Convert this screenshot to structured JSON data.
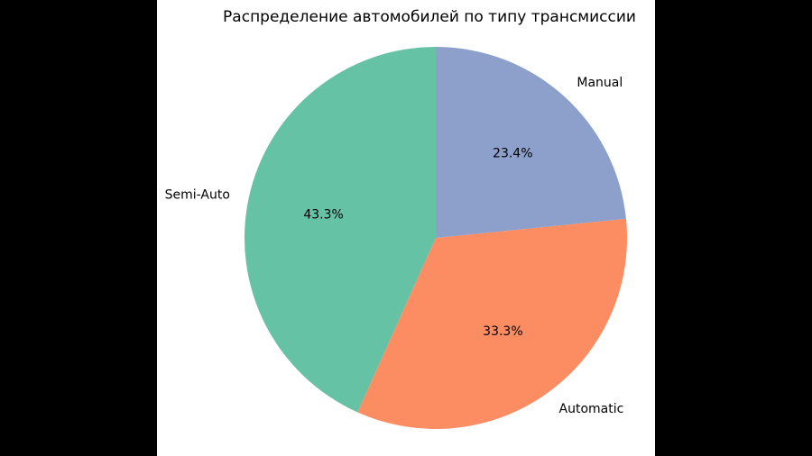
{
  "chart_data": {
    "type": "pie",
    "title": "Распределение автомобилей по типу трансмиссии",
    "categories": [
      "Semi-Auto",
      "Automatic",
      "Manual"
    ],
    "values": [
      43.3,
      33.3,
      23.4
    ],
    "labels_pct": [
      "43.3%",
      "33.3%",
      "23.4%"
    ],
    "colors": [
      "#66c2a5",
      "#fc8d62",
      "#8da0cb"
    ],
    "start_angle_deg": 90,
    "direction": "counterclockwise"
  }
}
